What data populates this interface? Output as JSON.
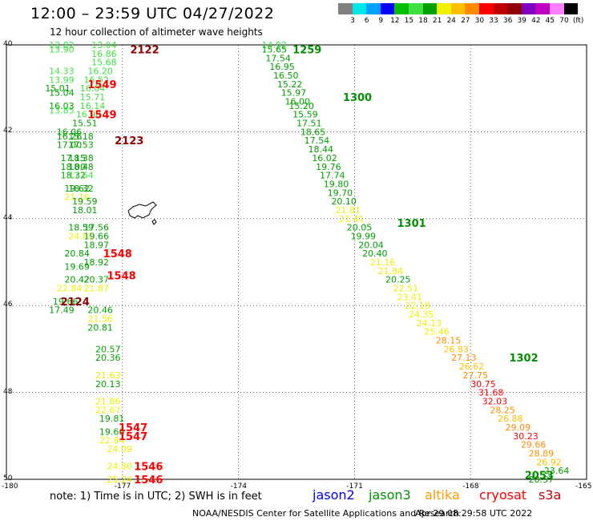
{
  "title": "12:00 – 23:59 UTC 04/27/2022",
  "subtitle": "12 hour collection of altimeter wave heights",
  "colorbar": {
    "colors": [
      "#808080",
      "#00e5e5",
      "#00a0ff",
      "#0000ff",
      "#00c000",
      "#40e040",
      "#00a000",
      "#f0f000",
      "#ffc000",
      "#ff8c00",
      "#ff0000",
      "#c00000",
      "#900000",
      "#8000c0",
      "#c000c0",
      "#ff80ff",
      "#000000"
    ],
    "labels": [
      "3",
      "6",
      "9",
      "12",
      "15",
      "18",
      "21",
      "24",
      "27",
      "30",
      "33",
      "36",
      "39",
      "42",
      "45",
      "70",
      "(ft)"
    ]
  },
  "axes": {
    "lat_labels": [
      "40",
      "42",
      "44",
      "46",
      "48",
      "50"
    ],
    "lon_labels": [
      "-180",
      "-177",
      "-174",
      "-171",
      "-168",
      "-165"
    ],
    "lat_range": [
      40,
      50
    ],
    "lon_range": [
      -180,
      -165
    ]
  },
  "note": "note:  1) Time is in UTC;  2) SWH is in feet",
  "satellites": [
    {
      "name": "jason2",
      "color": "#0000ff"
    },
    {
      "name": "jason3",
      "color": "#009000"
    },
    {
      "name": "altika",
      "color": "#ff9900"
    },
    {
      "name": "cryosat",
      "color": "#ff0000"
    },
    {
      "name": "s3a",
      "color": "#c00000"
    }
  ],
  "credit": "NOAA/NESDIS Center for Satellite Applications and Research",
  "stamp": "Apr 29 08:29:58 UTC 2022",
  "colors": {
    "grid": "#000000",
    "land": "#000000"
  },
  "chart_data": {
    "type": "scatter",
    "xlim": [
      -180,
      -165
    ],
    "ylim": [
      40,
      50
    ],
    "time_labels": [
      {
        "text": "2122",
        "lon": -176.8,
        "lat": 40.1,
        "color": "#900000"
      },
      {
        "text": "2123",
        "lon": -177.2,
        "lat": 42.2,
        "color": "#900000"
      },
      {
        "text": "2124",
        "lon": -178.6,
        "lat": 45.9,
        "color": "#900000"
      },
      {
        "text": "1549",
        "lon": -177.9,
        "lat": 40.9,
        "color": "#ff0000"
      },
      {
        "text": "1549",
        "lon": -177.9,
        "lat": 41.6,
        "color": "#ff0000"
      },
      {
        "text": "1548",
        "lon": -177.5,
        "lat": 44.8,
        "color": "#ff0000"
      },
      {
        "text": "1548",
        "lon": -177.4,
        "lat": 45.3,
        "color": "#ff0000"
      },
      {
        "text": "1547",
        "lon": -177.1,
        "lat": 48.8,
        "color": "#ff0000"
      },
      {
        "text": "1547",
        "lon": -177.1,
        "lat": 49.0,
        "color": "#ff0000"
      },
      {
        "text": "1546",
        "lon": -176.7,
        "lat": 49.7,
        "color": "#ff0000"
      },
      {
        "text": "1546",
        "lon": -176.7,
        "lat": 50.0,
        "color": "#ff0000"
      },
      {
        "text": "1259",
        "lon": -172.6,
        "lat": 40.1,
        "color": "#009000"
      },
      {
        "text": "1300",
        "lon": -171.3,
        "lat": 41.2,
        "color": "#009000"
      },
      {
        "text": "1301",
        "lon": -169.9,
        "lat": 44.1,
        "color": "#009000"
      },
      {
        "text": "1302",
        "lon": -167.0,
        "lat": 47.2,
        "color": "#009000"
      },
      {
        "text": "2053",
        "lon": -166.6,
        "lat": 49.9,
        "color": "#009000"
      }
    ],
    "points": [
      {
        "lon": -178.9,
        "lat": 40.0,
        "v": "13.82",
        "color": "#40e040"
      },
      {
        "lon": -178.9,
        "lat": 40.1,
        "v": "13.90",
        "color": "#40e040"
      },
      {
        "lon": -178.9,
        "lat": 40.6,
        "v": "14.33",
        "color": "#40e040"
      },
      {
        "lon": -178.9,
        "lat": 40.8,
        "v": "13.99",
        "color": "#40e040"
      },
      {
        "lon": -179.0,
        "lat": 41.0,
        "v": "15.01",
        "color": "#00a000"
      },
      {
        "lon": -178.9,
        "lat": 41.1,
        "v": "15.04",
        "color": "#00a000"
      },
      {
        "lon": -178.9,
        "lat": 41.4,
        "v": "16.03",
        "color": "#00a000"
      },
      {
        "lon": -178.9,
        "lat": 41.5,
        "v": "13.85",
        "color": "#40e040"
      },
      {
        "lon": -178.7,
        "lat": 42.0,
        "v": "16.06",
        "color": "#00a000"
      },
      {
        "lon": -178.7,
        "lat": 42.1,
        "v": "16.26",
        "color": "#00a000"
      },
      {
        "lon": -178.7,
        "lat": 42.3,
        "v": "17.00",
        "color": "#00a000"
      },
      {
        "lon": -178.6,
        "lat": 42.6,
        "v": "17.15",
        "color": "#00a000"
      },
      {
        "lon": -178.6,
        "lat": 42.8,
        "v": "18.00",
        "color": "#00a000"
      },
      {
        "lon": -178.6,
        "lat": 43.0,
        "v": "18.32",
        "color": "#00a000"
      },
      {
        "lon": -178.5,
        "lat": 43.3,
        "v": "19.62",
        "color": "#00a000"
      },
      {
        "lon": -178.5,
        "lat": 43.5,
        "v": "21.16",
        "color": "#f0f000"
      },
      {
        "lon": -178.4,
        "lat": 44.2,
        "v": "18.59",
        "color": "#00a000"
      },
      {
        "lon": -178.4,
        "lat": 44.4,
        "v": "24.81",
        "color": "#f0f000"
      },
      {
        "lon": -178.5,
        "lat": 44.8,
        "v": "20.84",
        "color": "#00a000"
      },
      {
        "lon": -178.5,
        "lat": 45.1,
        "v": "19.69",
        "color": "#00a000"
      },
      {
        "lon": -178.5,
        "lat": 45.4,
        "v": "20.42",
        "color": "#00a000"
      },
      {
        "lon": -178.7,
        "lat": 45.6,
        "v": "22.84",
        "color": "#f0f000"
      },
      {
        "lon": -178.8,
        "lat": 45.9,
        "v": "19.66",
        "color": "#00a000"
      },
      {
        "lon": -178.9,
        "lat": 46.1,
        "v": "17.49",
        "color": "#00a000"
      },
      {
        "lon": -177.8,
        "lat": 40.0,
        "v": "13.04",
        "color": "#40e040"
      },
      {
        "lon": -177.8,
        "lat": 40.2,
        "v": "16.86",
        "color": "#40e040"
      },
      {
        "lon": -177.8,
        "lat": 40.4,
        "v": "15.68",
        "color": "#40e040"
      },
      {
        "lon": -177.9,
        "lat": 40.6,
        "v": "16.20",
        "color": "#40e040"
      },
      {
        "lon": -178.0,
        "lat": 40.8,
        "v": "16.52",
        "color": "#40e040"
      },
      {
        "lon": -178.1,
        "lat": 41.0,
        "v": "16.04",
        "color": "#40e040"
      },
      {
        "lon": -178.1,
        "lat": 41.2,
        "v": "15.71",
        "color": "#40e040"
      },
      {
        "lon": -178.1,
        "lat": 41.4,
        "v": "16.14",
        "color": "#40e040"
      },
      {
        "lon": -178.2,
        "lat": 41.6,
        "v": "16.98",
        "color": "#40e040"
      },
      {
        "lon": -178.3,
        "lat": 41.8,
        "v": "15.51",
        "color": "#00a000"
      },
      {
        "lon": -178.4,
        "lat": 42.1,
        "v": "15.18",
        "color": "#00a000"
      },
      {
        "lon": -178.4,
        "lat": 42.3,
        "v": "17.53",
        "color": "#00a000"
      },
      {
        "lon": -178.4,
        "lat": 42.6,
        "v": "18.38",
        "color": "#00a000"
      },
      {
        "lon": -178.4,
        "lat": 42.8,
        "v": "18.48",
        "color": "#00a000"
      },
      {
        "lon": -178.4,
        "lat": 43.0,
        "v": "17.64",
        "color": "#40e040"
      },
      {
        "lon": -178.4,
        "lat": 43.3,
        "v": "18.32",
        "color": "#00a000"
      },
      {
        "lon": -178.3,
        "lat": 43.6,
        "v": "19.59",
        "color": "#00a000"
      },
      {
        "lon": -178.3,
        "lat": 43.8,
        "v": "18.01",
        "color": "#00a000"
      },
      {
        "lon": -178.0,
        "lat": 44.2,
        "v": "17.56",
        "color": "#00a000"
      },
      {
        "lon": -178.0,
        "lat": 44.4,
        "v": "19.66",
        "color": "#00a000"
      },
      {
        "lon": -178.0,
        "lat": 44.6,
        "v": "18.97",
        "color": "#00a000"
      },
      {
        "lon": -178.0,
        "lat": 45.0,
        "v": "18.92",
        "color": "#00a000"
      },
      {
        "lon": -178.0,
        "lat": 45.4,
        "v": "20.37",
        "color": "#00a000"
      },
      {
        "lon": -178.0,
        "lat": 45.6,
        "v": "21.87",
        "color": "#f0f000"
      },
      {
        "lon": -177.9,
        "lat": 46.1,
        "v": "20.46",
        "color": "#00a000"
      },
      {
        "lon": -177.9,
        "lat": 46.3,
        "v": "21.56",
        "color": "#f0f000"
      },
      {
        "lon": -177.9,
        "lat": 46.5,
        "v": "20.81",
        "color": "#00a000"
      },
      {
        "lon": -177.7,
        "lat": 47.0,
        "v": "20.57",
        "color": "#00a000"
      },
      {
        "lon": -177.7,
        "lat": 47.2,
        "v": "20.36",
        "color": "#00a000"
      },
      {
        "lon": -177.7,
        "lat": 47.6,
        "v": "21.63",
        "color": "#f0f000"
      },
      {
        "lon": -177.7,
        "lat": 47.8,
        "v": "20.13",
        "color": "#00a000"
      },
      {
        "lon": -177.7,
        "lat": 48.2,
        "v": "21.86",
        "color": "#f0f000"
      },
      {
        "lon": -177.7,
        "lat": 48.4,
        "v": "22.67",
        "color": "#f0f000"
      },
      {
        "lon": -177.6,
        "lat": 48.6,
        "v": "19.81",
        "color": "#00a000"
      },
      {
        "lon": -177.6,
        "lat": 48.9,
        "v": "19.66",
        "color": "#00a000"
      },
      {
        "lon": -177.6,
        "lat": 49.1,
        "v": "22.84",
        "color": "#f0f000"
      },
      {
        "lon": -177.4,
        "lat": 49.3,
        "v": "24.09",
        "color": "#f0f000"
      },
      {
        "lon": -177.4,
        "lat": 49.7,
        "v": "24.80",
        "color": "#f0f000"
      },
      {
        "lon": -177.4,
        "lat": 50.0,
        "v": "25.24",
        "color": "#f0f000"
      },
      {
        "lon": -173.4,
        "lat": 40.0,
        "v": "14.92",
        "color": "#40e040"
      },
      {
        "lon": -173.4,
        "lat": 40.1,
        "v": "15.65",
        "color": "#00a000"
      },
      {
        "lon": -173.3,
        "lat": 40.3,
        "v": "17.54",
        "color": "#00a000"
      },
      {
        "lon": -173.2,
        "lat": 40.5,
        "v": "16.95",
        "color": "#00a000"
      },
      {
        "lon": -173.1,
        "lat": 40.7,
        "v": "16.50",
        "color": "#00a000"
      },
      {
        "lon": -173.0,
        "lat": 40.9,
        "v": "15.22",
        "color": "#00a000"
      },
      {
        "lon": -172.9,
        "lat": 41.1,
        "v": "15.97",
        "color": "#00a000"
      },
      {
        "lon": -172.8,
        "lat": 41.3,
        "v": "16.00",
        "color": "#00a000"
      },
      {
        "lon": -172.7,
        "lat": 41.4,
        "v": "15.20",
        "color": "#00a000"
      },
      {
        "lon": -172.6,
        "lat": 41.6,
        "v": "15.59",
        "color": "#00a000"
      },
      {
        "lon": -172.5,
        "lat": 41.8,
        "v": "17.51",
        "color": "#00a000"
      },
      {
        "lon": -172.4,
        "lat": 42.0,
        "v": "18.65",
        "color": "#00a000"
      },
      {
        "lon": -172.3,
        "lat": 42.2,
        "v": "17.54",
        "color": "#00a000"
      },
      {
        "lon": -172.2,
        "lat": 42.4,
        "v": "18.44",
        "color": "#00a000"
      },
      {
        "lon": -172.1,
        "lat": 42.6,
        "v": "16.02",
        "color": "#00a000"
      },
      {
        "lon": -172.0,
        "lat": 42.8,
        "v": "19.76",
        "color": "#00a000"
      },
      {
        "lon": -171.9,
        "lat": 43.0,
        "v": "17.74",
        "color": "#00a000"
      },
      {
        "lon": -171.8,
        "lat": 43.2,
        "v": "19.80",
        "color": "#00a000"
      },
      {
        "lon": -171.7,
        "lat": 43.4,
        "v": "19.70",
        "color": "#00a000"
      },
      {
        "lon": -171.6,
        "lat": 43.6,
        "v": "20.10",
        "color": "#00a000"
      },
      {
        "lon": -171.5,
        "lat": 43.8,
        "v": "21.81",
        "color": "#f0f000"
      },
      {
        "lon": -171.4,
        "lat": 44.0,
        "v": "21.41",
        "color": "#f0f000"
      },
      {
        "lon": -171.2,
        "lat": 44.2,
        "v": "20.05",
        "color": "#00a000"
      },
      {
        "lon": -171.1,
        "lat": 44.4,
        "v": "19.99",
        "color": "#00a000"
      },
      {
        "lon": -170.9,
        "lat": 44.6,
        "v": "20.04",
        "color": "#00a000"
      },
      {
        "lon": -170.8,
        "lat": 44.8,
        "v": "20.40",
        "color": "#00a000"
      },
      {
        "lon": -170.6,
        "lat": 45.0,
        "v": "21.16",
        "color": "#f0f000"
      },
      {
        "lon": -170.4,
        "lat": 45.2,
        "v": "21.84",
        "color": "#f0f000"
      },
      {
        "lon": -170.2,
        "lat": 45.4,
        "v": "20.25",
        "color": "#00a000"
      },
      {
        "lon": -170.0,
        "lat": 45.6,
        "v": "22.51",
        "color": "#f0f000"
      },
      {
        "lon": -169.9,
        "lat": 45.8,
        "v": "23.41",
        "color": "#f0f000"
      },
      {
        "lon": -169.7,
        "lat": 46.0,
        "v": "22.18",
        "color": "#f0f000"
      },
      {
        "lon": -169.6,
        "lat": 46.2,
        "v": "24.35",
        "color": "#f0f000"
      },
      {
        "lon": -169.4,
        "lat": 46.4,
        "v": "24.13",
        "color": "#f0f000"
      },
      {
        "lon": -169.2,
        "lat": 46.6,
        "v": "25.46",
        "color": "#f0f000"
      },
      {
        "lon": -168.9,
        "lat": 46.8,
        "v": "28.15",
        "color": "#ff8c00"
      },
      {
        "lon": -168.7,
        "lat": 47.0,
        "v": "26.83",
        "color": "#ffc000"
      },
      {
        "lon": -168.5,
        "lat": 47.2,
        "v": "27.13",
        "color": "#ff8c00"
      },
      {
        "lon": -168.3,
        "lat": 47.4,
        "v": "26.62",
        "color": "#ffc000"
      },
      {
        "lon": -168.2,
        "lat": 47.6,
        "v": "27.75",
        "color": "#ff8c00"
      },
      {
        "lon": -168.0,
        "lat": 47.8,
        "v": "30.75",
        "color": "#ff0000"
      },
      {
        "lon": -167.8,
        "lat": 48.0,
        "v": "31.68",
        "color": "#ff0000"
      },
      {
        "lon": -167.7,
        "lat": 48.2,
        "v": "32.03",
        "color": "#ff0000"
      },
      {
        "lon": -167.5,
        "lat": 48.4,
        "v": "28.25",
        "color": "#ff8c00"
      },
      {
        "lon": -167.3,
        "lat": 48.6,
        "v": "26.88",
        "color": "#ffc000"
      },
      {
        "lon": -167.1,
        "lat": 48.8,
        "v": "29.09",
        "color": "#ff8c00"
      },
      {
        "lon": -166.9,
        "lat": 49.0,
        "v": "30.23",
        "color": "#ff0000"
      },
      {
        "lon": -166.7,
        "lat": 49.2,
        "v": "29.66",
        "color": "#ff8c00"
      },
      {
        "lon": -166.5,
        "lat": 49.4,
        "v": "28.89",
        "color": "#ff8c00"
      },
      {
        "lon": -166.3,
        "lat": 49.6,
        "v": "26.92",
        "color": "#ffc000"
      },
      {
        "lon": -166.1,
        "lat": 49.8,
        "v": "23.64",
        "color": "#00a000"
      },
      {
        "lon": -166.5,
        "lat": 50.0,
        "v": "20.57",
        "color": "#00a000"
      }
    ]
  }
}
